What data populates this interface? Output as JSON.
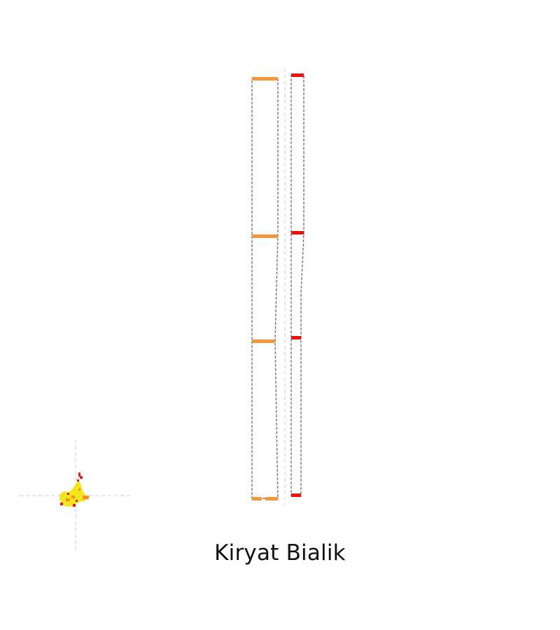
{
  "map": {
    "title": "Kiryat Bialik",
    "colors": {
      "background": "#ffffff",
      "guide_line": "#cccccc",
      "outline": "#777777",
      "orange_ticks": "#f5963a",
      "red_ticks": "#ee1111",
      "locator_yellow": "#f4e41c",
      "locator_red": "#e81c1c",
      "locator_orange": "#f29020"
    },
    "icons": {
      "locator": "mini-map-shape-icon"
    }
  }
}
